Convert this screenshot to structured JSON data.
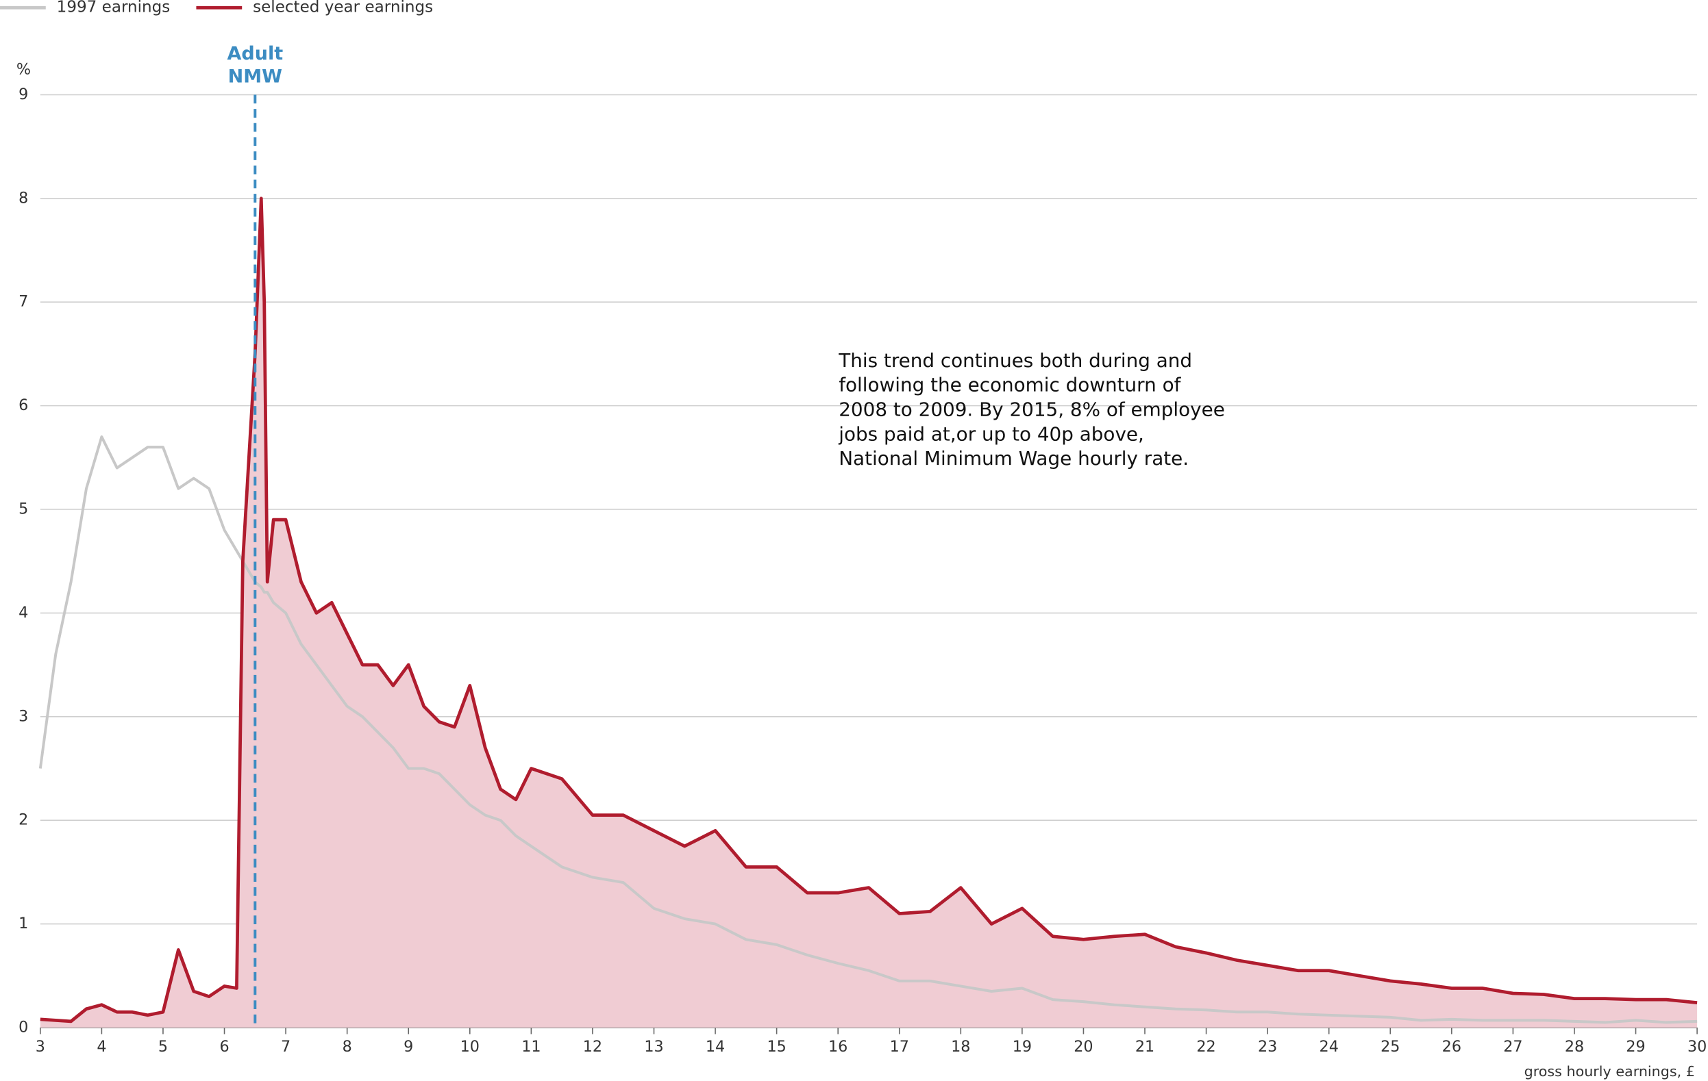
{
  "chart_data": {
    "type": "area-line",
    "y_label": "%",
    "x_label": "gross hourly earnings, £",
    "xlim": [
      3,
      30
    ],
    "ylim": [
      0,
      9
    ],
    "xticks": [
      3,
      4,
      5,
      6,
      7,
      8,
      9,
      10,
      11,
      12,
      13,
      14,
      15,
      16,
      17,
      18,
      19,
      20,
      21,
      22,
      23,
      24,
      25,
      26,
      27,
      28,
      29,
      30
    ],
    "yticks": [
      0,
      1,
      2,
      3,
      4,
      5,
      6,
      7,
      8,
      9
    ],
    "grid": true,
    "legend": "top-left",
    "x": [
      3,
      3.25,
      3.5,
      3.75,
      4,
      4.25,
      4.5,
      4.75,
      5,
      5.25,
      5.5,
      5.75,
      6,
      6.2,
      6.3,
      6.4,
      6.5,
      6.6,
      6.65,
      6.7,
      6.8,
      7,
      7.25,
      7.5,
      7.75,
      8,
      8.25,
      8.5,
      8.75,
      9,
      9.25,
      9.5,
      9.75,
      10,
      10.25,
      10.5,
      10.75,
      11,
      11.5,
      12,
      12.5,
      13,
      13.5,
      14,
      14.5,
      15,
      15.5,
      16,
      16.5,
      17,
      17.5,
      18,
      18.5,
      19,
      19.5,
      20,
      20.5,
      21,
      21.5,
      22,
      22.5,
      23,
      23.5,
      24,
      24.5,
      25,
      25.5,
      26,
      26.5,
      27,
      27.5,
      28,
      28.5,
      29,
      29.5,
      30
    ],
    "series": [
      {
        "name": "1997 earnings",
        "color": "#c8c8c8",
        "values": [
          2.5,
          3.6,
          4.3,
          5.2,
          5.7,
          5.4,
          5.5,
          5.6,
          5.6,
          5.2,
          5.3,
          5.2,
          4.8,
          4.6,
          4.5,
          4.4,
          4.3,
          4.25,
          4.2,
          4.2,
          4.1,
          4.0,
          3.7,
          3.5,
          3.3,
          3.1,
          3.0,
          2.85,
          2.7,
          2.5,
          2.5,
          2.45,
          2.3,
          2.15,
          2.05,
          2.0,
          1.85,
          1.75,
          1.55,
          1.45,
          1.4,
          1.15,
          1.05,
          1.0,
          0.85,
          0.8,
          0.7,
          0.62,
          0.55,
          0.45,
          0.45,
          0.4,
          0.35,
          0.38,
          0.27,
          0.25,
          0.22,
          0.2,
          0.18,
          0.17,
          0.15,
          0.15,
          0.13,
          0.12,
          0.11,
          0.1,
          0.07,
          0.08,
          0.07,
          0.07,
          0.07,
          0.06,
          0.05,
          0.07,
          0.05,
          0.06
        ]
      },
      {
        "name": "selected year earnings",
        "color": "#b01c2e",
        "fill": "#f0ccd3",
        "values": [
          0.08,
          0.07,
          0.06,
          0.18,
          0.22,
          0.15,
          0.15,
          0.12,
          0.15,
          0.75,
          0.35,
          0.3,
          0.4,
          0.38,
          4.5,
          5.5,
          6.5,
          8.0,
          7.0,
          4.3,
          4.9,
          4.9,
          4.3,
          4.0,
          4.1,
          3.8,
          3.5,
          3.5,
          3.3,
          3.5,
          3.1,
          2.95,
          2.9,
          3.3,
          2.7,
          2.3,
          2.2,
          2.5,
          2.4,
          2.05,
          2.05,
          1.9,
          1.75,
          1.9,
          1.55,
          1.55,
          1.3,
          1.3,
          1.35,
          1.1,
          1.12,
          1.35,
          1.0,
          1.15,
          0.88,
          0.85,
          0.88,
          0.9,
          0.78,
          0.72,
          0.65,
          0.6,
          0.55,
          0.55,
          0.5,
          0.45,
          0.42,
          0.38,
          0.38,
          0.33,
          0.32,
          0.28,
          0.28,
          0.27,
          0.27,
          0.24
        ]
      }
    ],
    "nmw_line": {
      "x": 6.5,
      "color": "#3c8cc2",
      "label": [
        "Adult",
        "NMW"
      ]
    },
    "annotation": [
      "This trend continues both during and",
      "following the economic downturn of",
      "2008 to 2009. By 2015, 8% of employee",
      "jobs paid at,or up to 40p above,",
      "National Minimum Wage hourly rate."
    ]
  }
}
